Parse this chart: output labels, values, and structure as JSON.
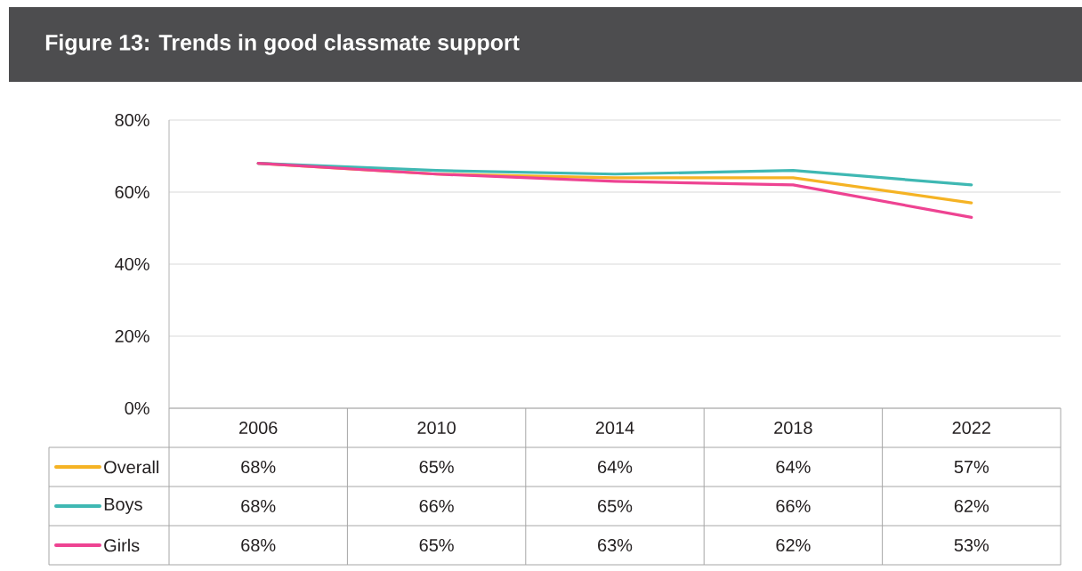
{
  "chart_data": {
    "type": "line",
    "title": "Figure 13: Trends in good classmate support",
    "categories": [
      "2006",
      "2010",
      "2014",
      "2018",
      "2022"
    ],
    "series": [
      {
        "name": "Overall",
        "color": "#f5b324",
        "values": [
          68,
          65,
          64,
          64,
          57
        ],
        "value_labels": [
          "68%",
          "65%",
          "64%",
          "64%",
          "57%"
        ]
      },
      {
        "name": "Boys",
        "color": "#3fb8b3",
        "values": [
          68,
          66,
          65,
          66,
          62
        ],
        "value_labels": [
          "68%",
          "66%",
          "65%",
          "66%",
          "62%"
        ]
      },
      {
        "name": "Girls",
        "color": "#ee4392",
        "values": [
          68,
          65,
          63,
          62,
          53
        ],
        "value_labels": [
          "68%",
          "65%",
          "63%",
          "62%",
          "53%"
        ]
      }
    ],
    "ylim": [
      0,
      80
    ],
    "yticks": [
      {
        "value": 0,
        "label": "0%"
      },
      {
        "value": 20,
        "label": "20%"
      },
      {
        "value": 40,
        "label": "40%"
      },
      {
        "value": 60,
        "label": "60%"
      },
      {
        "value": 80,
        "label": "80%"
      }
    ],
    "grid": "y",
    "legend": "bottom"
  }
}
